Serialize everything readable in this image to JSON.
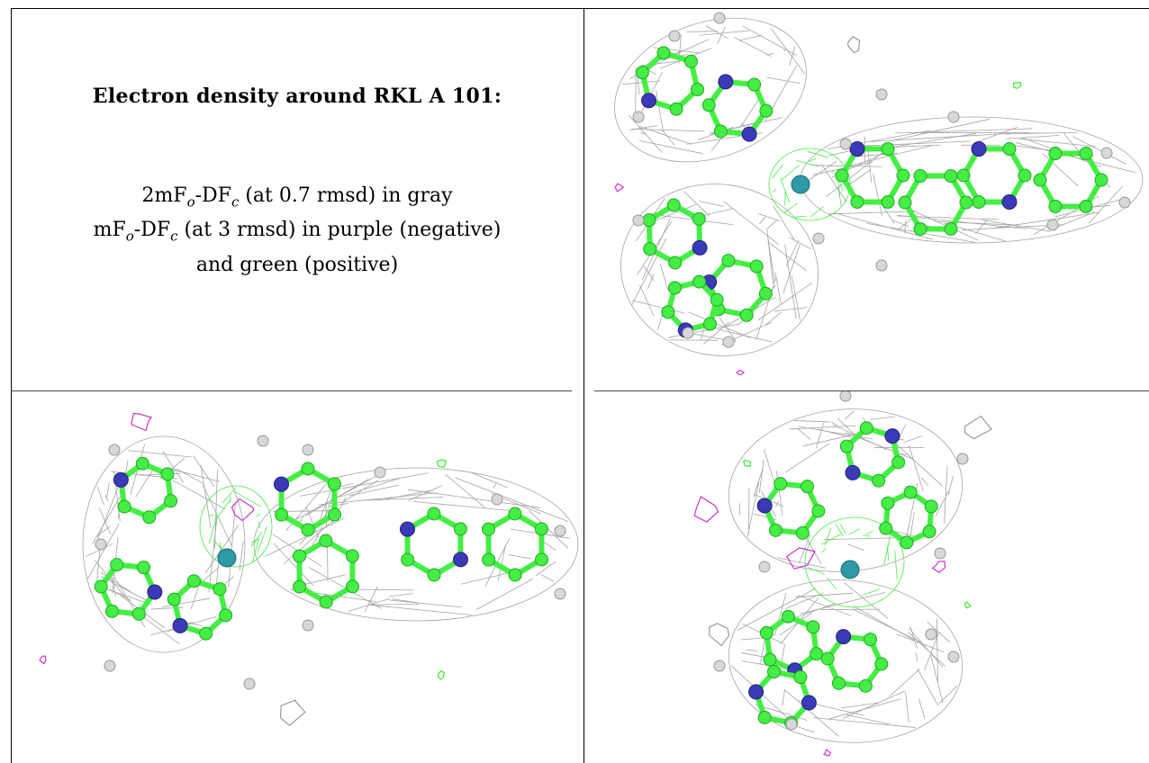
{
  "caption": {
    "title": "Electron density around RKL A 101:",
    "map_2fofc": {
      "lead": "2mF",
      "sub_o": "o",
      "mid": "-DF",
      "sub_c": "c",
      "tail": " (at 0.7 rmsd) in gray"
    },
    "map_fofc": {
      "lead": "mF",
      "sub_o": "o",
      "mid": "-DF",
      "sub_c": "c",
      "tail": " (at 3 rmsd) in purple (negative)"
    },
    "map_fofc_cont": "and green (positive)"
  },
  "colors": {
    "mesh_2fofc": "#9a9a9a",
    "mesh_negative": "#cc33cc",
    "mesh_positive": "#33ee33",
    "carbon": "#44ee44",
    "nitrogen": "#3a3ab8",
    "metal": "#2e9aa8",
    "hydrogen": "#d8d8d8"
  },
  "views": [
    {
      "name": "view-top-right",
      "center_label": "metal"
    },
    {
      "name": "view-bottom-left",
      "center_label": "metal"
    },
    {
      "name": "view-bottom-right",
      "center_label": "metal"
    }
  ]
}
